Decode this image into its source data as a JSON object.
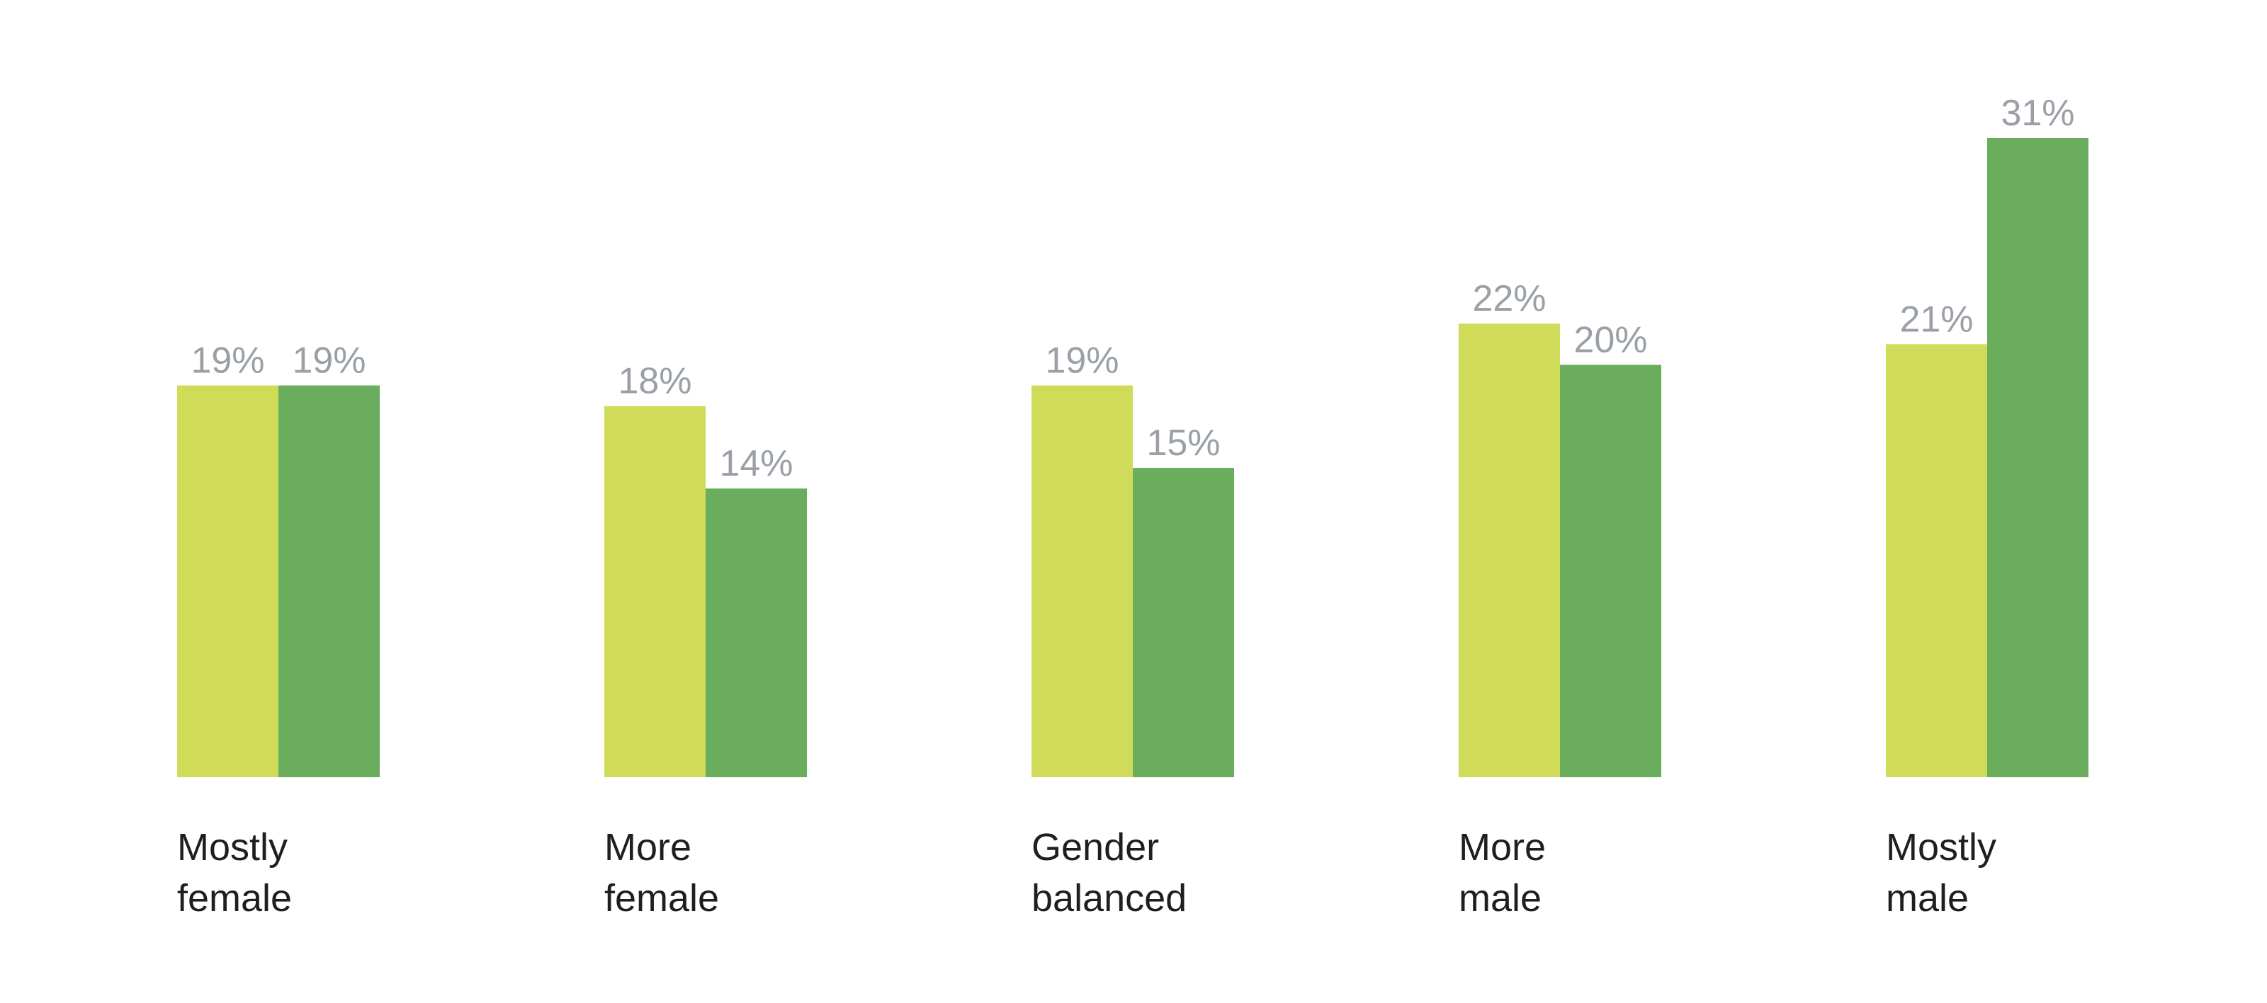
{
  "chart_data": {
    "type": "bar",
    "title": "",
    "xlabel": "",
    "ylabel": "",
    "categories": [
      [
        "Mostly",
        "female"
      ],
      [
        "More",
        "female"
      ],
      [
        "Gender",
        "balanced"
      ],
      [
        "More",
        "male"
      ],
      [
        "Mostly",
        "male"
      ]
    ],
    "series": [
      {
        "color": "#d0db5a",
        "values": [
          19,
          18,
          19,
          22,
          21
        ],
        "labels": [
          "19%",
          "18%",
          "19%",
          "22%",
          "21%"
        ]
      },
      {
        "color": "#6aad5c",
        "values": [
          19,
          14,
          15,
          20,
          31
        ],
        "labels": [
          "19%",
          "14%",
          "15%",
          "20%",
          "31%"
        ]
      }
    ],
    "ylim": [
      0,
      31
    ],
    "grid": false,
    "legend": "none"
  },
  "colors": {
    "value_label": "#9aa0a6",
    "category_label": "#1f1f1f"
  }
}
